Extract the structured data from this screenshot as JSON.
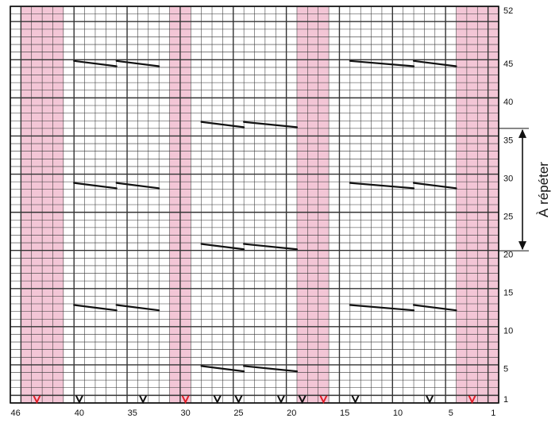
{
  "chart_data": {
    "type": "knitting-chart",
    "columns": 46,
    "rows": 52,
    "x_ticks": [
      46,
      40,
      35,
      30,
      25,
      20,
      15,
      10,
      5,
      1
    ],
    "y_ticks": [
      1,
      5,
      10,
      15,
      20,
      25,
      30,
      35,
      40,
      45,
      52
    ],
    "shaded_column_bands": [
      [
        42,
        45
      ],
      [
        30,
        31
      ],
      [
        17,
        19
      ],
      [
        1,
        4
      ]
    ],
    "shade_color": "#f3c6d6",
    "grid_color": "#333333",
    "accent_color": "#e0202a",
    "slip_marks_red": [
      44,
      30,
      17,
      3
    ],
    "slip_marks_black": [
      40,
      34,
      27,
      25,
      21,
      19,
      14,
      7
    ],
    "cable_groups": [
      {
        "rows": [
          45,
          13
        ],
        "cols": [
          [
            36,
            40
          ],
          [
            32,
            36
          ],
          [
            8,
            14
          ],
          [
            4,
            8
          ]
        ]
      },
      {
        "rows": [
          37,
          21,
          5
        ],
        "cols": [
          [
            24,
            28
          ],
          [
            19,
            24
          ]
        ]
      },
      {
        "rows": [
          29
        ],
        "cols": [
          [
            36,
            40
          ],
          [
            32,
            36
          ],
          [
            8,
            14
          ],
          [
            4,
            8
          ]
        ]
      }
    ],
    "repeat_rows": [
      20,
      36
    ],
    "repeat_label": "À répéter"
  }
}
